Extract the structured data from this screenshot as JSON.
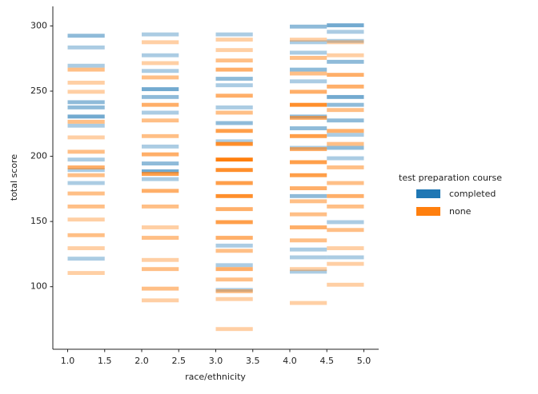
{
  "chart_data": {
    "type": "histogram2d",
    "xlabel": "race/ethnicity",
    "ylabel": "total score",
    "xlim": [
      0.8,
      5.2
    ],
    "ylim": [
      52,
      315
    ],
    "xticks": [
      {
        "value": 1,
        "label": "1.0"
      },
      1.5,
      {
        "value": 2,
        "label": "2.0"
      },
      2.5,
      {
        "value": 3,
        "label": "3.0"
      },
      3.5,
      {
        "value": 4,
        "label": "4.0"
      },
      4.5,
      {
        "value": 5,
        "label": "5.0"
      }
    ],
    "yticks": [
      100,
      150,
      200,
      250,
      300
    ],
    "xbin_width": 0.5,
    "ybin_width": 3,
    "legend_title": "test preparation course",
    "legend": "right",
    "series": [
      {
        "name": "completed",
        "color": "#1f77b4",
        "x": [
          1,
          1,
          1,
          1,
          1,
          1,
          1,
          1,
          1,
          1,
          1,
          2,
          2,
          2,
          2,
          2,
          2,
          2,
          2,
          2,
          2,
          3,
          3,
          3,
          3,
          3,
          3,
          3,
          3,
          3,
          4,
          4,
          4,
          4,
          4,
          4,
          4,
          4,
          4,
          4,
          4,
          4,
          4.5,
          4.5,
          4.5,
          4.5,
          4.5,
          4.5,
          4.5,
          4.5,
          4.5,
          4.5,
          4.5,
          4.5
        ],
        "y": [
          291,
          282,
          268,
          240,
          236,
          229,
          222,
          196,
          188,
          178,
          120,
          292,
          276,
          264,
          250,
          244,
          232,
          206,
          193,
          187,
          181,
          292,
          258,
          253,
          236,
          224,
          210,
          130,
          115,
          96,
          298,
          286,
          278,
          265,
          256,
          229,
          220,
          205,
          168,
          127,
          121,
          110,
          299,
          294,
          287,
          271,
          244,
          238,
          226,
          215,
          205,
          197,
          148,
          121
        ],
        "values": [
          2,
          1,
          1,
          2,
          2,
          3,
          1,
          1,
          1,
          1,
          1,
          1,
          1,
          1,
          3,
          2,
          1,
          1,
          2,
          3,
          1,
          1,
          2,
          1,
          1,
          2,
          1,
          1,
          1,
          1,
          2,
          1,
          1,
          2,
          1,
          2,
          2,
          1,
          2,
          1,
          1,
          1,
          3,
          1,
          1,
          2,
          3,
          2,
          2,
          1,
          2,
          1,
          1,
          1
        ]
      },
      {
        "name": "none",
        "color": "#ff7f0e",
        "x": [
          1,
          1,
          1,
          1,
          1,
          1,
          1,
          1,
          1,
          1,
          1,
          1,
          1,
          1,
          2,
          2,
          2,
          2,
          2,
          2,
          2,
          2,
          2,
          2,
          2,
          2,
          2,
          2,
          2,
          2,
          3,
          3,
          3,
          3,
          3,
          3,
          3,
          3,
          3,
          3,
          3,
          3,
          3,
          3,
          3,
          3,
          3,
          3,
          3,
          3,
          3,
          4,
          4,
          4,
          4,
          4,
          4,
          4,
          4,
          4,
          4,
          4,
          4,
          4,
          4,
          4,
          4,
          4,
          4.5,
          4.5,
          4.5,
          4.5,
          4.5,
          4.5,
          4.5,
          4.5,
          4.5,
          4.5,
          4.5,
          4.5,
          4.5,
          4.5,
          4.5
        ],
        "y": [
          265,
          255,
          248,
          225,
          213,
          202,
          190,
          184,
          170,
          160,
          150,
          138,
          128,
          109,
          286,
          270,
          259,
          238,
          226,
          214,
          200,
          185,
          172,
          160,
          144,
          136,
          119,
          112,
          97,
          88,
          288,
          280,
          272,
          265,
          245,
          232,
          218,
          208,
          196,
          188,
          178,
          168,
          158,
          148,
          136,
          126,
          112,
          104,
          95,
          89,
          66,
          288,
          274,
          262,
          248,
          238,
          228,
          214,
          204,
          194,
          184,
          174,
          164,
          154,
          144,
          134,
          112,
          86,
          286,
          276,
          261,
          252,
          234,
          218,
          208,
          190,
          178,
          168,
          160,
          142,
          128,
          116,
          100
        ],
        "values": [
          2,
          1,
          1,
          2,
          1,
          2,
          3,
          2,
          2,
          2,
          1,
          2,
          1,
          1,
          1,
          1,
          2,
          3,
          2,
          2,
          3,
          4,
          3,
          2,
          1,
          2,
          1,
          2,
          2,
          1,
          1,
          1,
          2,
          3,
          3,
          2,
          4,
          5,
          6,
          5,
          4,
          5,
          3,
          4,
          3,
          2,
          3,
          2,
          2,
          1,
          1,
          1,
          2,
          2,
          3,
          5,
          3,
          4,
          3,
          4,
          4,
          3,
          2,
          2,
          3,
          2,
          1,
          1,
          1,
          1,
          3,
          3,
          2,
          3,
          2,
          2,
          2,
          3,
          2,
          2,
          1,
          1,
          1
        ]
      }
    ]
  }
}
